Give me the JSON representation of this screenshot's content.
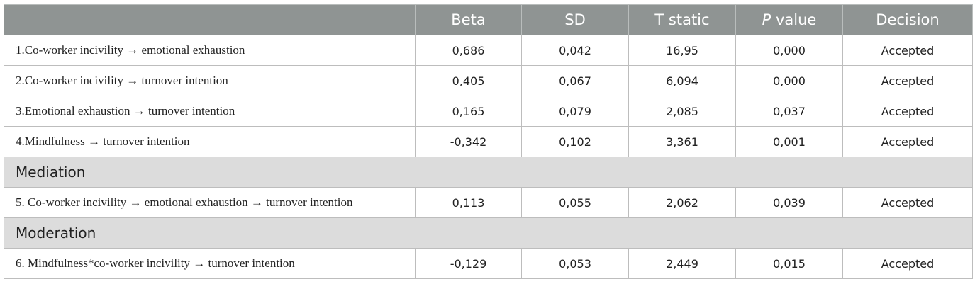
{
  "header": {
    "col0": "",
    "beta": "Beta",
    "sd": "SD",
    "t_static": "T static",
    "p_italic": "P",
    "p_rest": " value",
    "decision": "Decision"
  },
  "rows": [
    {
      "label": "1.Co-worker incivility → emotional exhaustion",
      "beta": "0,686",
      "sd": "0,042",
      "t": "16,95",
      "p": "0,000",
      "decision": "Accepted"
    },
    {
      "label": "2.Co-worker incivility → turnover intention",
      "beta": "0,405",
      "sd": "0,067",
      "t": "6,094",
      "p": "0,000",
      "decision": "Accepted"
    },
    {
      "label": "3.Emotional exhaustion → turnover intention",
      "beta": "0,165",
      "sd": "0,079",
      "t": "2,085",
      "p": "0,037",
      "decision": "Accepted"
    },
    {
      "label": "4.Mindfulness → turnover intention",
      "beta": "-0,342",
      "sd": "0,102",
      "t": "3,361",
      "p": "0,001",
      "decision": "Accepted"
    }
  ],
  "section_mediation": "Mediation",
  "mediation_rows": [
    {
      "label": "5. Co-worker incivility → emotional exhaustion → turnover intention",
      "beta": "0,113",
      "sd": "0,055",
      "t": "2,062",
      "p": "0,039",
      "decision": "Accepted"
    }
  ],
  "section_moderation": "Moderation",
  "moderation_rows": [
    {
      "label": "6. Mindfulness*co-worker incivility → turnover intention",
      "beta": "-0,129",
      "sd": "0,053",
      "t": "2,449",
      "p": "0,015",
      "decision": "Accepted"
    }
  ],
  "colors": {
    "header_bg": "#8f9493",
    "section_bg": "#dcdcdc",
    "border": "#bdbdbd"
  }
}
